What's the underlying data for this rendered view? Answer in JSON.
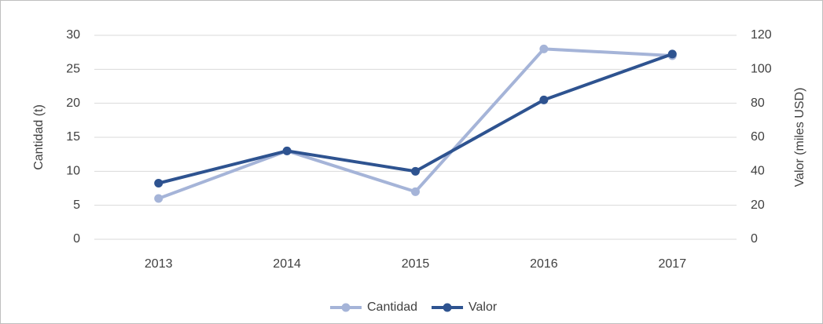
{
  "chart_data": {
    "type": "line",
    "categories": [
      "2013",
      "2014",
      "2015",
      "2016",
      "2017"
    ],
    "series": [
      {
        "name": "Cantidad",
        "color": "#a5b4d8",
        "values": [
          6,
          13,
          7,
          28,
          27
        ]
      },
      {
        "name": "Valor",
        "color": "#2e5390",
        "axis": "y2",
        "values": [
          33,
          52,
          40,
          82,
          109
        ]
      }
    ],
    "ylabel": "Cantidad (t)",
    "y2label": "Valor (miles USD)",
    "ylim": [
      0,
      30
    ],
    "yticks": [
      0,
      5,
      10,
      15,
      20,
      25,
      30
    ],
    "y2lim": [
      0,
      120
    ],
    "y2ticks": [
      0,
      20,
      40,
      60,
      80,
      100,
      120
    ],
    "grid": true,
    "legend": "bottom"
  }
}
